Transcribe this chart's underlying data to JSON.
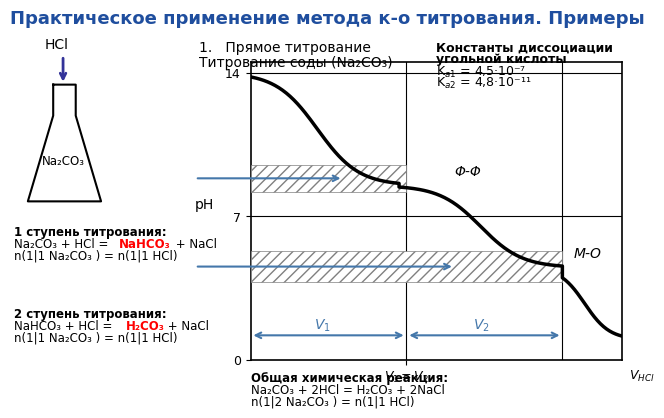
{
  "title": "Практическое применение метода к-о титрования. Примеры",
  "title_color": "#1f4e9e",
  "title_fontsize": 13,
  "background_color": "#ffffff",
  "subtitle1": "1.   Прямое титрование",
  "subtitle2": "Титрование соды (Na₂CO₃)",
  "constants_title": "Константы диссоциации",
  "constants_line2": "угольной кислоты",
  "constants_ka1": "Kₐ₁ = 4,5·10⁻⁷",
  "constants_ka2": "Kₐ₂ = 4,8·10⁻¹¹",
  "step1_line1": "1 ступень титрования:",
  "step1_line2": "Na₂CO₃ + HCl = NaHCO₃ + NaCl",
  "step1_line3": "n(1|1 Na₂CO₃ ) = n(1|1 HCl)",
  "step2_line1": "2 ступень титрования:",
  "step2_line2": "NaHCO₃ + HCl = H₂CO₃ + NaCl",
  "step2_line3": "n(1|1 Na₂CO₃ ) = n(1|1 HCl)",
  "overall_title": "Общая химическая реакция:",
  "overall_line2": "Na₂CO₃ + 2HCl = H₂CO₃ + 2NaCl",
  "overall_line3": "n(1|2 Na₂CO₃ ) = n(1|1 HCl)",
  "flask_bg": "#f5f5a0",
  "hatch_color": "#555555",
  "curve_color": "#000000",
  "grid_color": "#aaaaaa",
  "arrow_color": "#4477aa",
  "phi_phi_label": "Φ-Φ",
  "mo_label": "M-O",
  "v1_label": "V₁",
  "v2_label": "V₂",
  "x_label": "V₁ = V₂",
  "x_end_label": "V₈␄₁",
  "ph_label": "pH",
  "ph_14": "14",
  "ph_7": "7",
  "ph_0": "0"
}
